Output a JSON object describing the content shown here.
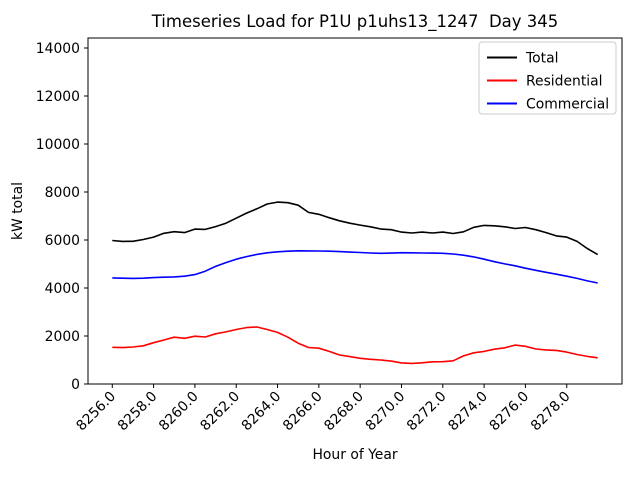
{
  "chart_data": {
    "type": "line",
    "title": "Timeseries Load for P1U p1uhs13_1247  Day 345",
    "xlabel": "Hour of Year",
    "ylabel": "kW total",
    "grid": false,
    "legend_position": "upper right",
    "axis_color": "#000000",
    "legend_border_color": "#cccccc",
    "background_color": "#ffffff",
    "xlim": [
      8254.825,
      8280.675
    ],
    "ylim": [
      0,
      14417
    ],
    "xticks": [
      8256,
      8258,
      8260,
      8262,
      8264,
      8266,
      8268,
      8270,
      8272,
      8274,
      8276,
      8278
    ],
    "yticks": [
      0,
      2000,
      4000,
      6000,
      8000,
      10000,
      12000,
      14000
    ],
    "x_start": 8256.0,
    "x_step": 0.5,
    "series": [
      {
        "name": "Total",
        "color": "#000000",
        "values": [
          5980,
          5940,
          5945,
          6020,
          6120,
          6280,
          6345,
          6310,
          6455,
          6440,
          6560,
          6700,
          6910,
          7120,
          7300,
          7500,
          7580,
          7555,
          7450,
          7150,
          7070,
          6930,
          6800,
          6700,
          6620,
          6550,
          6460,
          6430,
          6330,
          6290,
          6330,
          6290,
          6330,
          6270,
          6340,
          6530,
          6610,
          6590,
          6550,
          6480,
          6520,
          6430,
          6310,
          6170,
          6120,
          5940,
          5640,
          5390
        ]
      },
      {
        "name": "Residential",
        "color": "#ff0000",
        "values": [
          1530,
          1518,
          1540,
          1592,
          1720,
          1835,
          1950,
          1905,
          1990,
          1960,
          2090,
          2170,
          2270,
          2350,
          2375,
          2270,
          2150,
          1950,
          1700,
          1520,
          1490,
          1360,
          1210,
          1140,
          1070,
          1030,
          1000,
          955,
          880,
          860,
          885,
          925,
          930,
          965,
          1170,
          1300,
          1360,
          1450,
          1510,
          1620,
          1570,
          1460,
          1420,
          1400,
          1330,
          1230,
          1150,
          1090
        ]
      },
      {
        "name": "Commercial",
        "color": "#0000ff",
        "values": [
          4420,
          4408,
          4402,
          4410,
          4432,
          4450,
          4462,
          4490,
          4560,
          4700,
          4900,
          5060,
          5200,
          5310,
          5400,
          5465,
          5510,
          5535,
          5550,
          5548,
          5540,
          5532,
          5515,
          5495,
          5478,
          5460,
          5445,
          5455,
          5470,
          5465,
          5460,
          5455,
          5445,
          5415,
          5365,
          5295,
          5200,
          5095,
          5005,
          4925,
          4825,
          4738,
          4655,
          4575,
          4490,
          4400,
          4298,
          4210
        ]
      }
    ]
  }
}
